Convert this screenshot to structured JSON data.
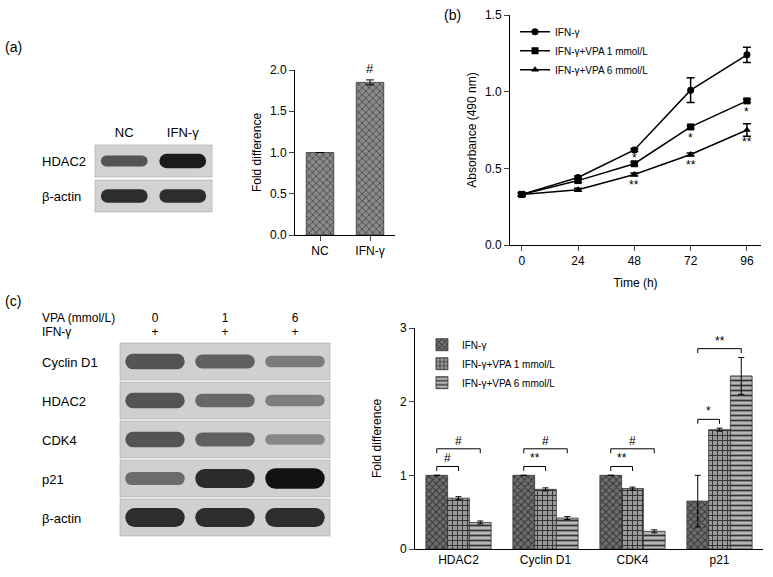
{
  "panel_labels": [
    "(a)",
    "(b)",
    "(c)"
  ],
  "blots": [
    {
      "lanes": [
        "NC",
        "IFN-γ"
      ],
      "rows": [
        "HDAC2",
        "β-actin"
      ]
    },
    {
      "header": [
        {
          "label": "VPA (mmol/L)",
          "values": [
            "0",
            "1",
            "6"
          ]
        },
        {
          "label": "IFN-γ",
          "values": [
            "+",
            "+",
            "+"
          ]
        }
      ],
      "rows": [
        "Cyclin D1",
        "HDAC2",
        "CDK4",
        "p21",
        "β-actin"
      ]
    }
  ],
  "chart_data": [
    {
      "type": "bar",
      "categories": [
        "NC",
        "IFN-γ"
      ],
      "values": [
        1.0,
        1.85
      ],
      "errors": [
        0,
        0.03
      ],
      "color": "#8a8a8a",
      "y_label": "Fold difference",
      "ylim": [
        0,
        2
      ],
      "yticks": [
        {
          "value": 0,
          "label": "0.0"
        },
        {
          "value": 0.5,
          "label": "0.5"
        },
        {
          "value": 1,
          "label": "1.0"
        },
        {
          "value": 1.5,
          "label": "1.5"
        },
        {
          "value": 2,
          "label": "2.0"
        }
      ],
      "annotations": [
        {
          "category": "IFN-γ",
          "text": "#"
        }
      ]
    },
    {
      "type": "line",
      "x": [
        0,
        24,
        48,
        72,
        96
      ],
      "xlim": [
        -5,
        102
      ],
      "xticks": [
        0,
        24,
        48,
        72,
        96
      ],
      "ylim": [
        0,
        1.5
      ],
      "yticks": [
        {
          "value": 0,
          "label": "0.0"
        },
        {
          "value": 0.5,
          "label": "0.5"
        },
        {
          "value": 1,
          "label": "1.0"
        },
        {
          "value": 1.5,
          "label": "1.5"
        }
      ],
      "x_label": "Time (h)",
      "y_label": "Absorbance (490 nm)",
      "legend": "upper left",
      "series": [
        {
          "name": "IFN-γ",
          "color": "#000000",
          "marker": "circle",
          "values": [
            0.33,
            0.44,
            0.62,
            1.01,
            1.24
          ],
          "errors": [
            0.01,
            0.01,
            0.01,
            0.08,
            0.05
          ]
        },
        {
          "name": "IFN-γ+VPA 1 mmol/L",
          "color": "#000000",
          "marker": "square",
          "values": [
            0.33,
            0.42,
            0.53,
            0.77,
            0.94
          ],
          "errors": [
            0.01,
            0.01,
            0.01,
            0.01,
            0.01
          ]
        },
        {
          "name": "IFN-γ+VPA 6 mmol/L",
          "color": "#000000",
          "marker": "triangle-up",
          "values": [
            0.33,
            0.36,
            0.46,
            0.59,
            0.75
          ],
          "errors": [
            0.01,
            0.01,
            0.01,
            0.01,
            0.04
          ]
        }
      ],
      "annotations": [
        {
          "x": 48,
          "y": 0.57,
          "text": "*"
        },
        {
          "x": 48,
          "y": 0.39,
          "text": "**"
        },
        {
          "x": 72,
          "y": 0.7,
          "text": "*"
        },
        {
          "x": 72,
          "y": 0.52,
          "text": "**"
        },
        {
          "x": 96,
          "y": 0.87,
          "text": "*"
        },
        {
          "x": 96,
          "y": 0.67,
          "text": "**"
        }
      ]
    },
    {
      "type": "bar",
      "categories": [
        "HDAC2",
        "Cyclin D1",
        "CDK4",
        "p21"
      ],
      "y_label": "Fold difference",
      "ylim": [
        0,
        3
      ],
      "yticks": [
        0,
        1,
        2,
        3
      ],
      "legend": "upper left",
      "series": [
        {
          "name": "IFN-γ",
          "color": "#6e6e6e",
          "values": [
            1,
            1,
            1,
            0.65
          ],
          "errors": [
            0,
            0,
            0,
            0.35
          ]
        },
        {
          "name": "IFN-γ+VPA 1 mmol/L",
          "color": "#9a9a9a",
          "values": [
            0.69,
            0.81,
            0.82,
            1.62
          ],
          "errors": [
            0.02,
            0.02,
            0.02,
            0.02
          ]
        },
        {
          "name": "IFN-γ+VPA 6 mmol/L",
          "color": "#b5b5b5",
          "values": [
            0.36,
            0.42,
            0.24,
            2.35
          ],
          "errors": [
            0.02,
            0.02,
            0.02,
            0.25
          ]
        }
      ],
      "annotations": [
        {
          "category": "HDAC2",
          "series": [
            0,
            1
          ],
          "text": "#"
        },
        {
          "category": "HDAC2",
          "series": [
            0,
            2
          ],
          "text": "#"
        },
        {
          "category": "Cyclin D1",
          "series": [
            0,
            1
          ],
          "text": "**"
        },
        {
          "category": "Cyclin D1",
          "series": [
            0,
            2
          ],
          "text": "#"
        },
        {
          "category": "CDK4",
          "series": [
            0,
            1
          ],
          "text": "**"
        },
        {
          "category": "CDK4",
          "series": [
            0,
            2
          ],
          "text": "#"
        },
        {
          "category": "p21",
          "series": [
            0,
            1
          ],
          "text": "*"
        },
        {
          "category": "p21",
          "series": [
            0,
            2
          ],
          "text": "**"
        }
      ]
    }
  ]
}
